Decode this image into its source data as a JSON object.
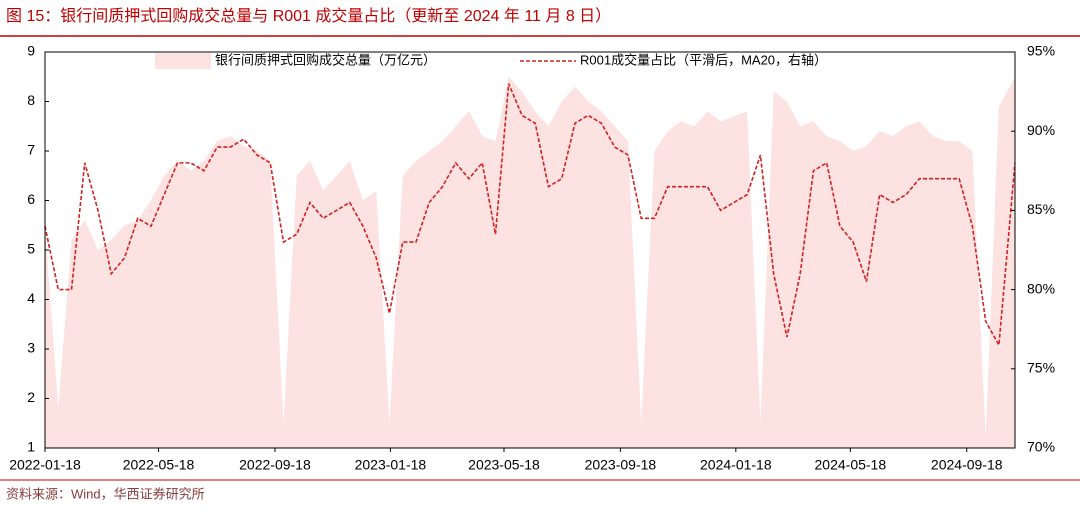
{
  "chart_data": {
    "type": "line",
    "title": "图 15：银行间质押式回购成交总量与 R001 成交量占比（更新至 2024 年 11 月 8 日）",
    "source": "资料来源：Wind，华西证券研究所",
    "x": [
      "2022-01-18",
      "2022-02-01",
      "2022-02-15",
      "2022-03-01",
      "2022-03-15",
      "2022-03-29",
      "2022-04-12",
      "2022-04-26",
      "2022-05-10",
      "2022-05-24",
      "2022-06-07",
      "2022-06-21",
      "2022-07-05",
      "2022-07-19",
      "2022-08-02",
      "2022-08-16",
      "2022-08-30",
      "2022-09-13",
      "2022-09-27",
      "2022-10-11",
      "2022-10-25",
      "2022-11-08",
      "2022-11-22",
      "2022-12-06",
      "2022-12-20",
      "2023-01-03",
      "2023-01-17",
      "2023-01-31",
      "2023-02-14",
      "2023-02-28",
      "2023-03-14",
      "2023-03-28",
      "2023-04-11",
      "2023-04-25",
      "2023-05-09",
      "2023-05-23",
      "2023-06-06",
      "2023-06-20",
      "2023-07-04",
      "2023-07-18",
      "2023-08-01",
      "2023-08-15",
      "2023-08-29",
      "2023-09-12",
      "2023-09-26",
      "2023-10-10",
      "2023-10-24",
      "2023-11-07",
      "2023-11-21",
      "2023-12-05",
      "2023-12-19",
      "2024-01-02",
      "2024-01-16",
      "2024-01-30",
      "2024-02-13",
      "2024-02-27",
      "2024-03-12",
      "2024-03-26",
      "2024-04-09",
      "2024-04-23",
      "2024-05-07",
      "2024-05-21",
      "2024-06-04",
      "2024-06-18",
      "2024-07-02",
      "2024-07-16",
      "2024-07-30",
      "2024-08-13",
      "2024-08-27",
      "2024-09-10",
      "2024-09-24",
      "2024-10-08",
      "2024-10-22",
      "2024-11-08"
    ],
    "series": [
      {
        "name": "银行间质押式回购成交总量（万亿元）",
        "type": "area",
        "axis": "y",
        "color": "#fde2e2",
        "values": [
          5.5,
          1.8,
          5.2,
          5.6,
          5.0,
          5.2,
          5.5,
          5.6,
          6.0,
          6.5,
          6.8,
          6.6,
          6.8,
          7.2,
          7.3,
          7.1,
          7.0,
          6.8,
          1.5,
          6.5,
          6.8,
          6.2,
          6.5,
          6.8,
          6.0,
          6.2,
          1.5,
          6.5,
          6.8,
          7.0,
          7.2,
          7.5,
          7.8,
          7.3,
          7.2,
          8.5,
          8.2,
          7.8,
          7.5,
          8.0,
          8.3,
          8.0,
          7.8,
          7.5,
          7.2,
          1.5,
          7.0,
          7.4,
          7.6,
          7.5,
          7.8,
          7.6,
          7.7,
          7.8,
          1.5,
          8.2,
          8.0,
          7.5,
          7.6,
          7.3,
          7.2,
          7.0,
          7.1,
          7.4,
          7.3,
          7.5,
          7.6,
          7.3,
          7.2,
          7.2,
          7.0,
          1.2,
          7.9,
          8.5
        ]
      },
      {
        "name": "R001成交量占比（平滑后，MA20，右轴）",
        "type": "line",
        "axis": "y2",
        "color": "#d42020",
        "values": [
          84,
          80,
          80,
          88,
          85,
          81,
          82,
          84.5,
          84,
          86,
          88,
          88,
          87.5,
          89,
          89,
          89.5,
          88.5,
          88,
          83,
          83.5,
          85.5,
          84.5,
          85,
          85.5,
          84,
          82,
          78.5,
          83,
          83,
          85.5,
          86.5,
          88,
          87,
          88,
          83.5,
          93,
          91,
          90.5,
          86.5,
          87,
          90.5,
          91,
          90.5,
          89,
          88.5,
          84.5,
          84.5,
          86.5,
          86.5,
          86.5,
          86.5,
          85,
          85.5,
          86,
          88.5,
          81,
          77,
          81,
          87.5,
          88,
          84,
          83,
          80.5,
          86,
          85.5,
          86,
          87,
          87,
          87,
          87,
          84,
          78,
          76.5,
          88
        ]
      }
    ],
    "xlim": [
      "2022-01-18",
      "2024-11-08"
    ],
    "xticks": [
      "2022-01-18",
      "2022-05-18",
      "2022-09-18",
      "2023-01-18",
      "2023-05-18",
      "2023-09-18",
      "2024-01-18",
      "2024-05-18",
      "2024-09-18"
    ],
    "ylim": [
      1,
      9
    ],
    "yticks": [
      1,
      2,
      3,
      4,
      5,
      6,
      7,
      8,
      9
    ],
    "y2lim": [
      70,
      95
    ],
    "y2ticks": [
      {
        "value": 70,
        "label": "70%"
      },
      {
        "value": 75,
        "label": "75%"
      },
      {
        "value": 80,
        "label": "80%"
      },
      {
        "value": 85,
        "label": "85%"
      },
      {
        "value": 90,
        "label": "90%"
      },
      {
        "value": 95,
        "label": "95%"
      }
    ]
  }
}
